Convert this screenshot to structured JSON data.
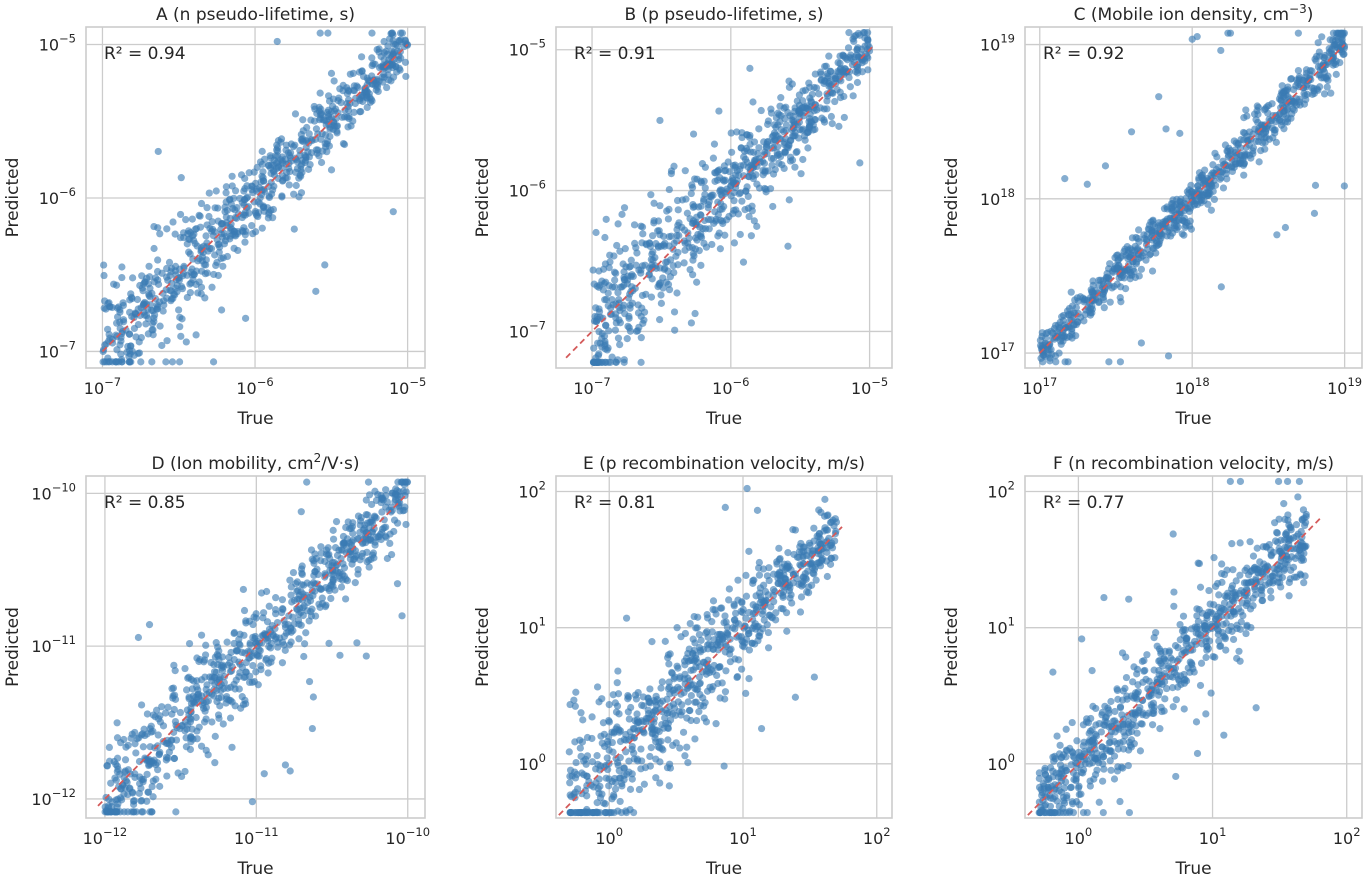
{
  "figure": {
    "xlabel": "True",
    "ylabel": "Predicted",
    "point_color": "#3a7bb3",
    "reference_line_color": "#d45a5a",
    "grid": true
  },
  "chart_data": [
    {
      "type": "scatter",
      "title": "A (n pseudo-lifetime, s)",
      "title_sup": "",
      "title_tail": "",
      "r2_label": "R² = 0.94",
      "scale": "log",
      "xlim": [
        7.8e-08,
        1.3e-05
      ],
      "ylim": [
        7.8e-08,
        1.3e-05
      ],
      "xticks": [
        1e-07,
        1e-06,
        1e-05
      ],
      "yticks": [
        1e-07,
        1e-06,
        1e-05
      ],
      "xtick_labels": [
        [
          "10",
          "−7"
        ],
        [
          "10",
          "−6"
        ],
        [
          "10",
          "−5"
        ]
      ],
      "ytick_labels": [
        [
          "10",
          "−7"
        ],
        [
          "10",
          "−6"
        ],
        [
          "10",
          "−5"
        ]
      ],
      "ref_line": [
        1e-07,
        1e-05
      ],
      "x_range": [
        1e-07,
        1e-05
      ],
      "spread": [
        0.36,
        0.14
      ],
      "n_points": 760,
      "outliers": 18,
      "seed": 11
    },
    {
      "type": "scatter",
      "title": "B (p pseudo-lifetime, s)",
      "title_sup": "",
      "title_tail": "",
      "r2_label": "R² = 0.91",
      "scale": "log",
      "xlim": [
        5.5e-08,
        1.45e-05
      ],
      "ylim": [
        5.5e-08,
        1.45e-05
      ],
      "xticks": [
        1e-07,
        1e-06,
        1e-05
      ],
      "yticks": [
        1e-07,
        1e-06,
        1e-05
      ],
      "xtick_labels": [
        [
          "10",
          "−7"
        ],
        [
          "10",
          "−6"
        ],
        [
          "10",
          "−5"
        ]
      ],
      "ytick_labels": [
        [
          "10",
          "−7"
        ],
        [
          "10",
          "−6"
        ],
        [
          "10",
          "−5"
        ]
      ],
      "ref_line": [
        6.5e-08,
        1.05e-05
      ],
      "x_range": [
        1e-07,
        1e-05
      ],
      "spread": [
        0.48,
        0.16
      ],
      "n_points": 760,
      "outliers": 20,
      "seed": 23
    },
    {
      "type": "scatter",
      "title": "C (Mobile ion density, cm",
      "title_sup": "−3",
      "title_tail": ")",
      "r2_label": "R² = 0.92",
      "scale": "log",
      "xlim": [
        8e+16,
        1.3e+19
      ],
      "ylim": [
        8e+16,
        1.3e+19
      ],
      "xticks": [
        1e+17,
        1e+18,
        1e+19
      ],
      "yticks": [
        1e+17,
        1e+18,
        1e+19
      ],
      "xtick_labels": [
        [
          "10",
          "17"
        ],
        [
          "10",
          "18"
        ],
        [
          "10",
          "19"
        ]
      ],
      "ytick_labels": [
        [
          "10",
          "17"
        ],
        [
          "10",
          "18"
        ],
        [
          "10",
          "19"
        ]
      ],
      "ref_line": [
        1e+17,
        1e+19
      ],
      "x_range": [
        1e+17,
        1e+19
      ],
      "spread": [
        0.12,
        0.14
      ],
      "n_points": 760,
      "outliers": 30,
      "seed": 37
    },
    {
      "type": "scatter",
      "title": "D (Ion mobility, cm",
      "title_sup": "2",
      "title_tail": "/V·s)",
      "r2_label": "R² = 0.85",
      "scale": "log",
      "xlim": [
        7.5e-13,
        1.3e-10
      ],
      "ylim": [
        7.5e-13,
        1.3e-10
      ],
      "xticks": [
        1e-12,
        1e-11,
        1e-10
      ],
      "yticks": [
        1e-12,
        1e-11,
        1e-10
      ],
      "xtick_labels": [
        [
          "10",
          "−12"
        ],
        [
          "10",
          "−11"
        ],
        [
          "10",
          "−10"
        ]
      ],
      "ytick_labels": [
        [
          "10",
          "−12"
        ],
        [
          "10",
          "−11"
        ],
        [
          "10",
          "−10"
        ]
      ],
      "ref_line": [
        9e-13,
        1e-10
      ],
      "x_range": [
        1e-12,
        1e-10
      ],
      "spread": [
        0.36,
        0.2
      ],
      "n_points": 760,
      "outliers": 28,
      "seed": 41
    },
    {
      "type": "scatter",
      "title": "E (p recombination velocity, m/s)",
      "title_sup": "",
      "title_tail": "",
      "r2_label": "R² = 0.81",
      "scale": "log",
      "xlim": [
        0.4,
        130
      ],
      "ylim": [
        0.4,
        130
      ],
      "xticks": [
        1,
        10,
        100
      ],
      "yticks": [
        1,
        10,
        100
      ],
      "xtick_labels": [
        [
          "10",
          "0"
        ],
        [
          "10",
          "1"
        ],
        [
          "10",
          "2"
        ]
      ],
      "ytick_labels": [
        [
          "10",
          "0"
        ],
        [
          "10",
          "1"
        ],
        [
          "10",
          "2"
        ]
      ],
      "ref_line": [
        0.42,
        55
      ],
      "x_range": [
        0.5,
        50
      ],
      "spread": [
        0.55,
        0.2
      ],
      "n_points": 760,
      "outliers": 12,
      "seed": 53
    },
    {
      "type": "scatter",
      "title": "F (n recombination velocity, m/s)",
      "title_sup": "",
      "title_tail": "",
      "r2_label": "R² = 0.77",
      "scale": "log",
      "xlim": [
        0.4,
        130
      ],
      "ylim": [
        0.4,
        130
      ],
      "xticks": [
        1,
        10,
        100
      ],
      "yticks": [
        1,
        10,
        100
      ],
      "xtick_labels": [
        [
          "10",
          "0"
        ],
        [
          "10",
          "1"
        ],
        [
          "10",
          "2"
        ]
      ],
      "ytick_labels": [
        [
          "10",
          "0"
        ],
        [
          "10",
          "1"
        ],
        [
          "10",
          "2"
        ]
      ],
      "ref_line": [
        0.42,
        65
      ],
      "x_range": [
        0.5,
        50
      ],
      "spread": [
        0.34,
        0.26
      ],
      "n_points": 760,
      "outliers": 22,
      "seed": 67
    }
  ]
}
